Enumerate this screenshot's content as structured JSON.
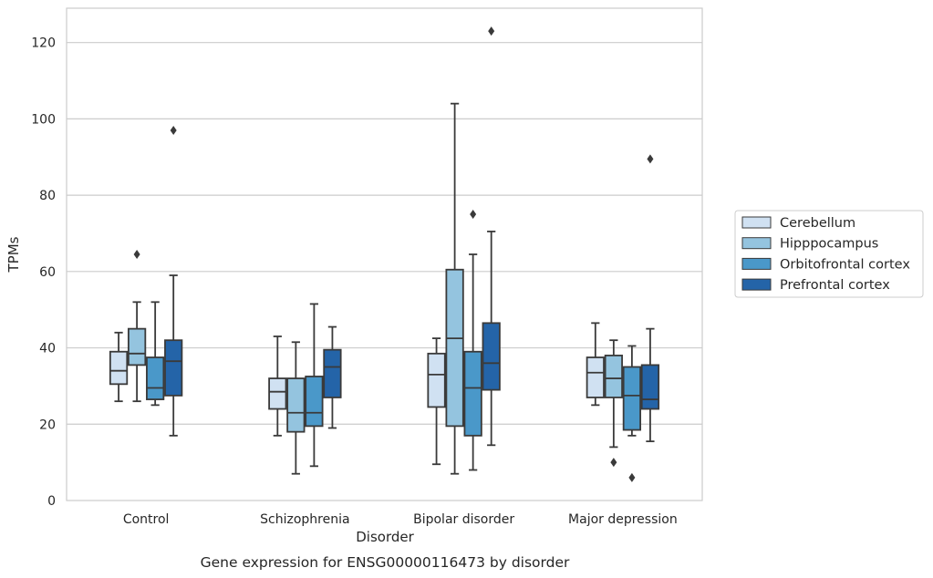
{
  "chart_data": {
    "type": "box",
    "title": "",
    "caption": "Gene expression for ENSG00000116473 by disorder",
    "xlabel": "Disorder",
    "ylabel": "TPMs",
    "ylim": [
      0,
      129
    ],
    "yticks": [
      0,
      20,
      40,
      60,
      80,
      100,
      120
    ],
    "categories": [
      "Control",
      "Schizophrenia",
      "Bipolar disorder",
      "Major depression"
    ],
    "grid": "horizontal",
    "legend_position": "right",
    "series": [
      {
        "name": "Cerebellum",
        "color": "#d0e1f2",
        "boxes": [
          {
            "whisker_low": 26,
            "q1": 30.5,
            "median": 34,
            "q3": 39,
            "whisker_high": 44,
            "outliers": []
          },
          {
            "whisker_low": 17,
            "q1": 24,
            "median": 28.5,
            "q3": 32,
            "whisker_high": 43,
            "outliers": []
          },
          {
            "whisker_low": 9.5,
            "q1": 24.5,
            "median": 33,
            "q3": 38.5,
            "whisker_high": 42.5,
            "outliers": []
          },
          {
            "whisker_low": 25,
            "q1": 27,
            "median": 33.5,
            "q3": 37.5,
            "whisker_high": 46.5,
            "outliers": []
          }
        ]
      },
      {
        "name": "Hipppocampus",
        "color": "#94c4df",
        "boxes": [
          {
            "whisker_low": 26,
            "q1": 35.5,
            "median": 38.5,
            "q3": 45,
            "whisker_high": 52,
            "outliers": [
              64.5
            ]
          },
          {
            "whisker_low": 7,
            "q1": 18,
            "median": 23,
            "q3": 32,
            "whisker_high": 41.5,
            "outliers": []
          },
          {
            "whisker_low": 7,
            "q1": 19.5,
            "median": 42.5,
            "q3": 60.5,
            "whisker_high": 104,
            "outliers": []
          },
          {
            "whisker_low": 14,
            "q1": 27,
            "median": 32,
            "q3": 38,
            "whisker_high": 42,
            "outliers": [
              10
            ]
          }
        ]
      },
      {
        "name": "Orbitofrontal cortex",
        "color": "#4a98c9",
        "boxes": [
          {
            "whisker_low": 25,
            "q1": 26.5,
            "median": 29.5,
            "q3": 37.5,
            "whisker_high": 52,
            "outliers": []
          },
          {
            "whisker_low": 9,
            "q1": 19.5,
            "median": 23,
            "q3": 32.5,
            "whisker_high": 51.5,
            "outliers": []
          },
          {
            "whisker_low": 8,
            "q1": 17,
            "median": 29.5,
            "q3": 39,
            "whisker_high": 64.5,
            "outliers": [
              75
            ]
          },
          {
            "whisker_low": 17,
            "q1": 18.5,
            "median": 27.5,
            "q3": 35,
            "whisker_high": 40.5,
            "outliers": [
              6
            ]
          }
        ]
      },
      {
        "name": "Prefrontal cortex",
        "color": "#2464a8",
        "boxes": [
          {
            "whisker_low": 17,
            "q1": 27.5,
            "median": 36.5,
            "q3": 42,
            "whisker_high": 59,
            "outliers": [
              97
            ]
          },
          {
            "whisker_low": 19,
            "q1": 27,
            "median": 35,
            "q3": 39.5,
            "whisker_high": 45.5,
            "outliers": []
          },
          {
            "whisker_low": 14.5,
            "q1": 29,
            "median": 36,
            "q3": 46.5,
            "whisker_high": 70.5,
            "outliers": [
              123
            ]
          },
          {
            "whisker_low": 15.5,
            "q1": 24,
            "median": 26.5,
            "q3": 35.5,
            "whisker_high": 45,
            "outliers": [
              89.5
            ]
          }
        ]
      }
    ]
  }
}
